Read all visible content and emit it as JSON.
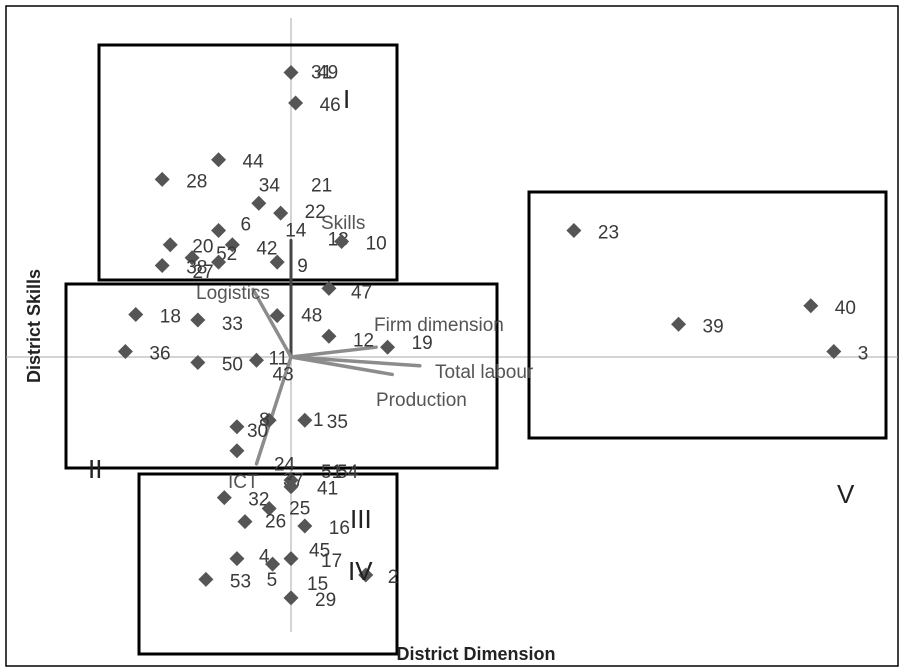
{
  "chart_data": {
    "type": "scatter",
    "xlabel": "District Dimension",
    "ylabel": "District Skills",
    "grid": false,
    "legend": "none",
    "colors": {
      "points": "#555555",
      "vectors": "#8c8c8c",
      "skills_vector": "#444444",
      "frames": "#000000",
      "axes": "#aaaaaa"
    },
    "points": [
      {
        "id": "49",
        "label": "49",
        "x": 0.0,
        "y": 2.61
      },
      {
        "id": "31",
        "label": "31",
        "x": 0.0,
        "y": 2.61,
        "hidden": true
      },
      {
        "id": "46",
        "label": "46",
        "x": 0.04,
        "y": 2.33
      },
      {
        "id": "44",
        "label": "44",
        "x": -0.63,
        "y": 1.81
      },
      {
        "id": "28",
        "label": "28",
        "x": -1.12,
        "y": 1.63
      },
      {
        "id": "34",
        "label": "34",
        "x": -0.28,
        "y": 1.41
      },
      {
        "id": "21",
        "label": "21",
        "x": 0.0,
        "y": 1.41,
        "hidden": true
      },
      {
        "id": "22",
        "label": "22",
        "x": -0.09,
        "y": 1.32
      },
      {
        "id": "14",
        "label": "14",
        "x": -0.12,
        "y": 1.29,
        "hidden": true
      },
      {
        "id": "6",
        "label": "6",
        "x": -0.63,
        "y": 1.16
      },
      {
        "id": "13",
        "label": "13",
        "x": 0.44,
        "y": 1.06,
        "hidden": true
      },
      {
        "id": "10",
        "label": "10",
        "x": 0.44,
        "y": 1.06
      },
      {
        "id": "20",
        "label": "20",
        "x": -1.05,
        "y": 1.03
      },
      {
        "id": "42",
        "label": "42",
        "x": -0.51,
        "y": 1.03
      },
      {
        "id": "52",
        "label": "52",
        "x": -0.86,
        "y": 0.91
      },
      {
        "id": "38",
        "label": "38",
        "x": -1.12,
        "y": 0.84
      },
      {
        "id": "27",
        "label": "27",
        "x": -0.63,
        "y": 0.87
      },
      {
        "id": "9",
        "label": "9",
        "x": -0.12,
        "y": 0.87
      },
      {
        "id": "47",
        "label": "47",
        "x": 0.33,
        "y": 0.63
      },
      {
        "id": "18",
        "label": "18",
        "x": -1.35,
        "y": 0.39
      },
      {
        "id": "33",
        "label": "33",
        "x": -0.81,
        "y": 0.34
      },
      {
        "id": "48",
        "label": "48",
        "x": -0.12,
        "y": 0.38
      },
      {
        "id": "12",
        "label": "12",
        "x": 0.33,
        "y": 0.19
      },
      {
        "id": "19",
        "label": "19",
        "x": 0.84,
        "y": 0.09
      },
      {
        "id": "36",
        "label": "36",
        "x": -1.44,
        "y": 0.05
      },
      {
        "id": "50",
        "label": "50",
        "x": -0.81,
        "y": -0.05
      },
      {
        "id": "11",
        "label": "11",
        "x": -0.3,
        "y": -0.03
      },
      {
        "id": "43",
        "label": "43",
        "x": -0.3,
        "y": -0.03,
        "hidden": true
      },
      {
        "id": "8",
        "label": "8",
        "x": -0.19,
        "y": -0.58
      },
      {
        "id": "1",
        "label": "1",
        "x": 0.0,
        "y": -0.58,
        "hidden": true
      },
      {
        "id": "35",
        "label": "35",
        "x": 0.12,
        "y": -0.58
      },
      {
        "id": "30",
        "label": "30",
        "x": -0.47,
        "y": -0.64
      },
      {
        "id": "24",
        "label": "24",
        "x": -0.47,
        "y": -0.86
      },
      {
        "id": "37",
        "label": "37",
        "x": 0.0,
        "y": -1.13
      },
      {
        "id": "51",
        "label": "51",
        "x": 0.0,
        "y": -1.13,
        "hidden": true
      },
      {
        "id": "54",
        "label": "54",
        "x": 0.0,
        "y": -1.13,
        "hidden": true
      },
      {
        "id": "41",
        "label": "41",
        "x": 0.0,
        "y": -1.19
      },
      {
        "id": "32",
        "label": "32",
        "x": -0.58,
        "y": -1.29
      },
      {
        "id": "25",
        "label": "25",
        "x": -0.19,
        "y": -1.39
      },
      {
        "id": "26",
        "label": "26",
        "x": -0.4,
        "y": -1.51
      },
      {
        "id": "16",
        "label": "16",
        "x": 0.12,
        "y": -1.55
      },
      {
        "id": "45",
        "label": "45",
        "x": 0.0,
        "y": -1.85
      },
      {
        "id": "4",
        "label": "4",
        "x": -0.47,
        "y": -1.85
      },
      {
        "id": "5",
        "label": "5",
        "x": -0.16,
        "y": -1.9
      },
      {
        "id": "17",
        "label": "17",
        "x": 0.0,
        "y": -1.89,
        "hidden": true
      },
      {
        "id": "2",
        "label": "2",
        "x": 0.65,
        "y": -2.0
      },
      {
        "id": "53",
        "label": "53",
        "x": -0.74,
        "y": -2.04
      },
      {
        "id": "15",
        "label": "15",
        "x": 0.0,
        "y": -2.01,
        "hidden": true
      },
      {
        "id": "29",
        "label": "29",
        "x": 0.0,
        "y": -2.21
      },
      {
        "id": "23",
        "label": "23",
        "x": 2.46,
        "y": 1.16
      },
      {
        "id": "40",
        "label": "40",
        "x": 4.52,
        "y": 0.47
      },
      {
        "id": "39",
        "label": "39",
        "x": 3.37,
        "y": 0.3
      },
      {
        "id": "3",
        "label": "3",
        "x": 4.72,
        "y": 0.05
      }
    ],
    "vectors": [
      {
        "name": "Skills",
        "x": 0.0,
        "y": 1.07
      },
      {
        "name": "Logistics",
        "x": -0.33,
        "y": 0.62
      },
      {
        "name": "Firm dimension",
        "x": 0.74,
        "y": 0.09
      },
      {
        "name": "Total labour",
        "x": 1.12,
        "y": -0.08
      },
      {
        "name": "Production",
        "x": 0.88,
        "y": -0.16
      },
      {
        "name": "ICT",
        "x": -0.3,
        "y": -0.98
      }
    ],
    "regions": [
      {
        "label": "I"
      },
      {
        "label": "II"
      },
      {
        "label": "III"
      },
      {
        "label": "IV"
      },
      {
        "label": "V"
      }
    ]
  }
}
